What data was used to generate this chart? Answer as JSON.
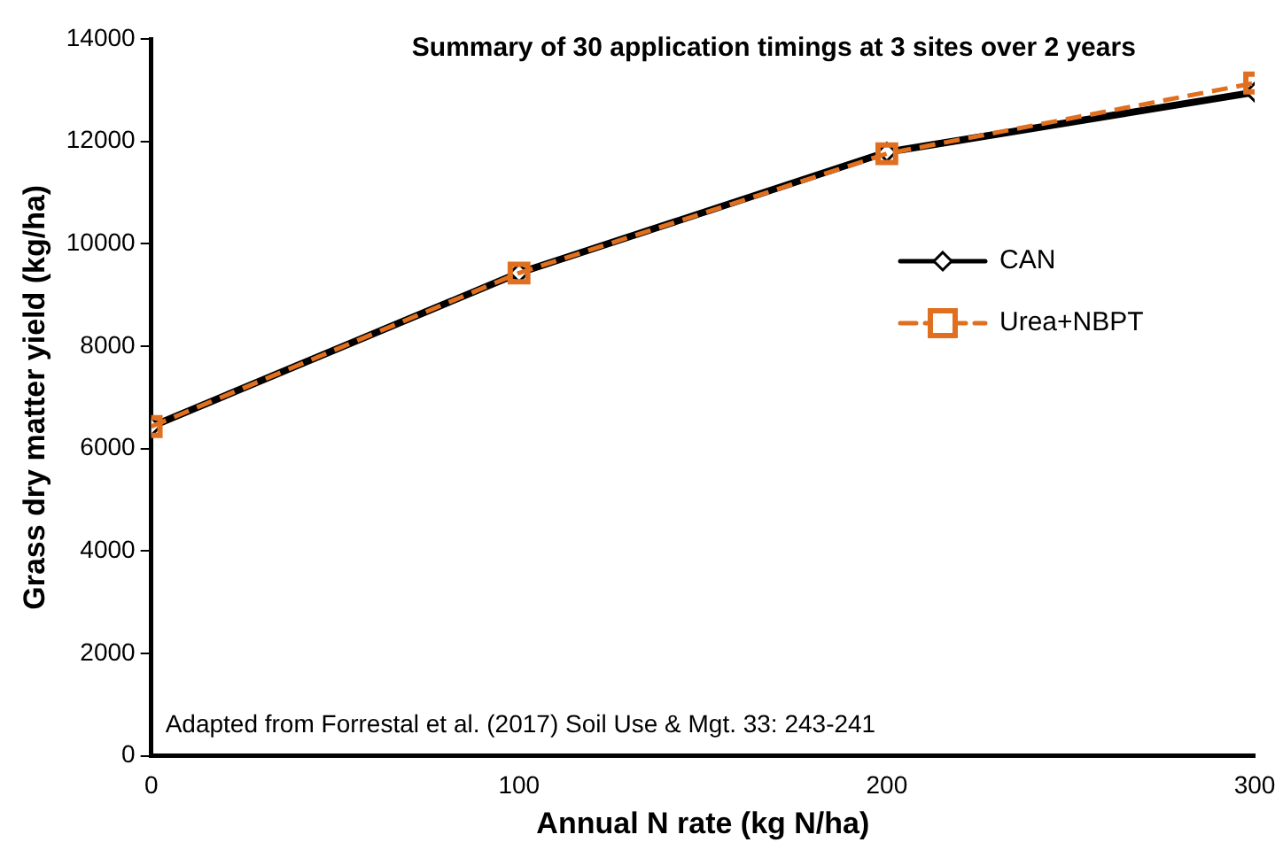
{
  "chart_data": {
    "type": "line",
    "title": "Summary of 30 application timings at 3 sites over 2 years",
    "xlabel": "Annual N rate (kg N/ha)",
    "ylabel": "Grass dry matter yield (kg/ha)",
    "annotations": [
      "Adapted from Forrestal et al. (2017) Soil Use & Mgt. 33: 243-241"
    ],
    "x": [
      0,
      100,
      200,
      300
    ],
    "series": [
      {
        "name": "CAN",
        "color": "#000000",
        "values": [
          6430,
          9430,
          11790,
          12960
        ],
        "marker": "diamond",
        "line_style": "solid"
      },
      {
        "name": "Urea+NBPT",
        "color": "#e07020",
        "values": [
          6430,
          9430,
          11760,
          13140
        ],
        "marker": "square",
        "line_style": "dashed"
      }
    ],
    "xlim": [
      0,
      300
    ],
    "xticks": [
      0,
      100,
      200,
      300
    ],
    "ylim": [
      0,
      14000
    ],
    "yticks": [
      0,
      2000,
      4000,
      6000,
      8000,
      10000,
      12000,
      14000
    ],
    "grid": false,
    "legend": "right"
  }
}
